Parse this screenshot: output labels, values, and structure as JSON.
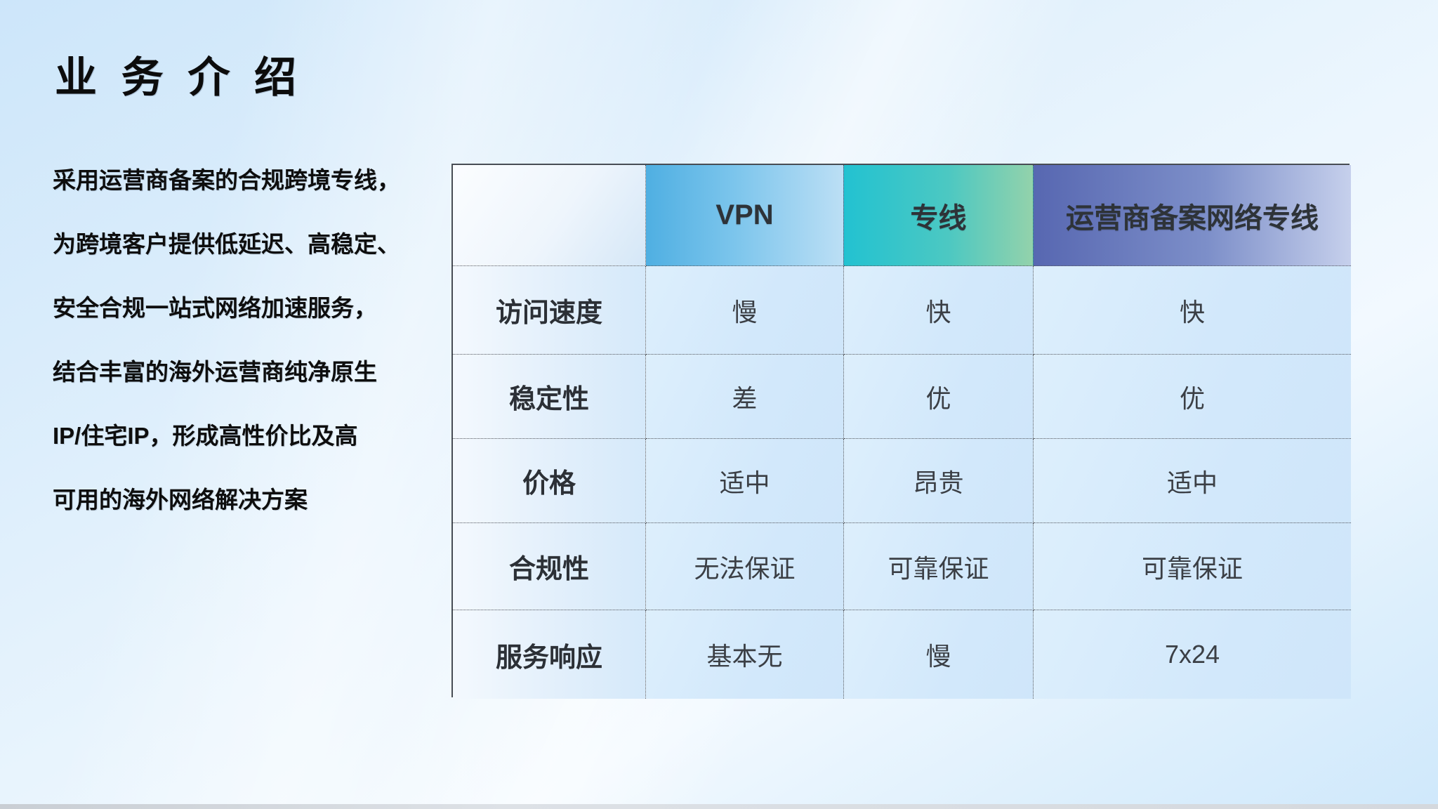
{
  "title": "业 务 介 绍",
  "description": {
    "lines": [
      "采用运营商备案的合规跨境专线，",
      "为跨境客户提供低延迟、高稳定、",
      "安全合规一站式网络加速服务，",
      "结合丰富的海外运营商纯净原生",
      "IP/住宅IP，形成高性价比及高",
      "可用的海外网络解决方案"
    ]
  },
  "comparison_table": {
    "columns": [
      {
        "label": "",
        "header_gradient": [
          "#fbfdff",
          "#d5e7f7"
        ]
      },
      {
        "label": "VPN",
        "header_gradient": [
          "#4fafe2",
          "#bcdff5"
        ]
      },
      {
        "label": "专线",
        "header_gradient": [
          "#22c2d1",
          "#93d2ab"
        ]
      },
      {
        "label": "运营商备案网络专线",
        "header_gradient": [
          "#5767b1",
          "#c6d0ec"
        ]
      }
    ],
    "rows": [
      {
        "header": "访问速度",
        "values": [
          "慢",
          "快",
          "快"
        ]
      },
      {
        "header": "稳定性",
        "values": [
          "差",
          "优",
          "优"
        ]
      },
      {
        "header": "价格",
        "values": [
          "适中",
          "昂贵",
          "适中"
        ]
      },
      {
        "header": "合规性",
        "values": [
          "无法保证",
          "可靠保证",
          "可靠保证"
        ]
      },
      {
        "header": "服务响应",
        "values": [
          "基本无",
          "慢",
          "7x24"
        ]
      }
    ]
  },
  "colors": {
    "background_blue": "#cde6fa",
    "cell_blue": "#d2e8fb",
    "border_dark": "#484d54",
    "inner_border": "#53565c",
    "title_text": "#0c0c0c",
    "table_text": "#3b3f45",
    "vpn_accent": "#4fafe2",
    "line_accent": "#22c2d1",
    "carrier_accent": "#5767b1"
  }
}
